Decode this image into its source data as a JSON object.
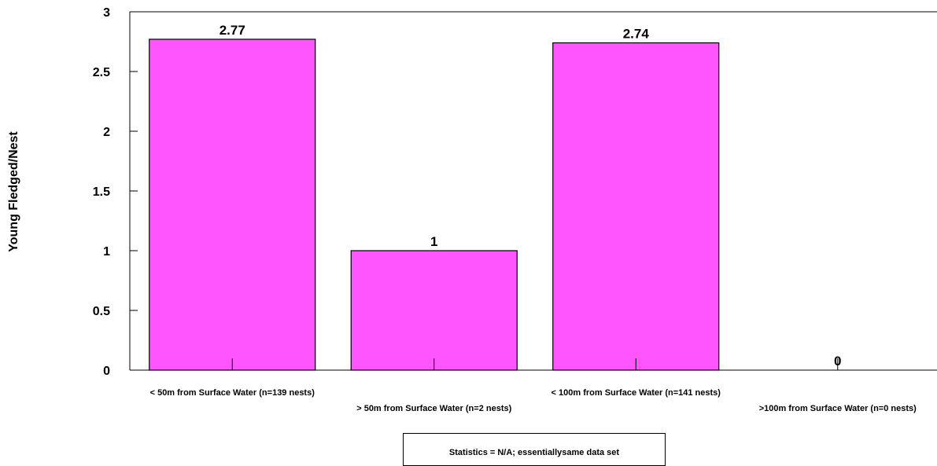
{
  "chart_data": {
    "type": "bar",
    "title": "",
    "xlabel": "",
    "ylabel": "Young Fledged/Nest",
    "categories": [
      "< 50m from Surface Water (n=139 nests)",
      "> 50m from Surface Water (n=2 nests)",
      "< 100m from Surface Water (n=141 nests)",
      ">100m from Surface Water (n=0 nests)"
    ],
    "values": [
      2.77,
      1,
      2.74,
      0
    ],
    "data_labels": [
      "2.77",
      "1",
      "2.74",
      "0"
    ],
    "yticks": [
      "0",
      "0.5",
      "1",
      "1.5",
      "2",
      "2.5",
      "3"
    ],
    "ylim": [
      0,
      3
    ],
    "grid": false,
    "bar_color": "#ff55ff",
    "legend": null
  },
  "statistics_note": "Statistics = N/A; essentiallysame data set"
}
